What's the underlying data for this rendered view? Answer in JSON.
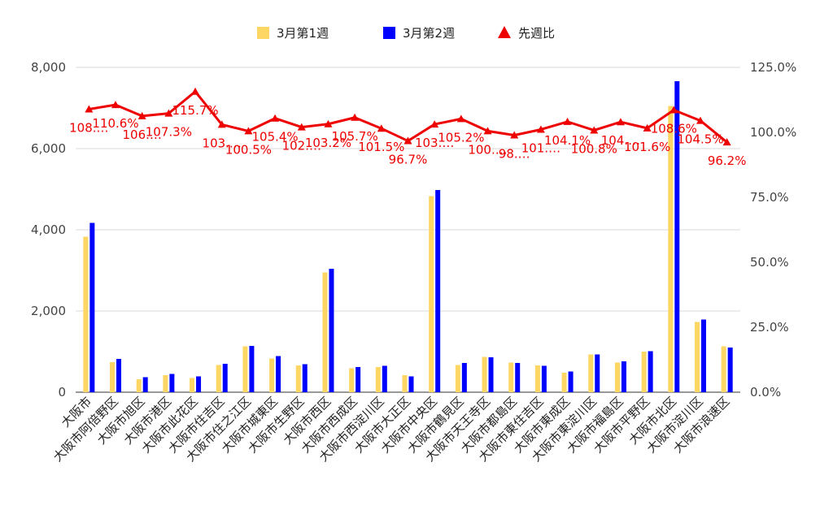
{
  "chart_data": {
    "type": "bar",
    "title": "",
    "categories": [
      "大阪市",
      "大阪市阿倍野区",
      "大阪市旭区",
      "大阪市港区",
      "大阪市此花区",
      "大阪市住吉区",
      "大阪市住之江区",
      "大阪市城東区",
      "大阪市生野区",
      "大阪市西区",
      "大阪市西成区",
      "大阪市西淀川区",
      "大阪市大正区",
      "大阪市中央区",
      "大阪市鶴見区",
      "大阪市天王寺区",
      "大阪市都島区",
      "大阪市東住吉区",
      "大阪市東成区",
      "大阪市東淀川区",
      "大阪市福島区",
      "大阪市平野区",
      "大阪市北区",
      "大阪市淀川区",
      "大阪市浪速区"
    ],
    "series": [
      {
        "name": "3月第1週",
        "type": "bar",
        "axis": "left",
        "color": "#fdd663",
        "values": [
          3830,
          740,
          320,
          420,
          350,
          670,
          1130,
          830,
          660,
          2950,
          590,
          620,
          420,
          4830,
          670,
          870,
          730,
          660,
          480,
          930,
          730,
          1000,
          7050,
          1730,
          1130
        ]
      },
      {
        "name": "3月第2週",
        "type": "bar",
        "axis": "left",
        "color": "#0000ff",
        "values": [
          4170,
          820,
          370,
          450,
          390,
          700,
          1140,
          890,
          690,
          3040,
          620,
          650,
          390,
          4980,
          720,
          860,
          720,
          650,
          510,
          930,
          760,
          1010,
          7660,
          1790,
          1100
        ]
      },
      {
        "name": "先週比",
        "type": "line",
        "axis": "right",
        "color": "#ee0000",
        "marker": "triangle",
        "values": [
          108.9,
          110.6,
          106.3,
          107.3,
          115.7,
          103.0,
          100.5,
          105.4,
          102.0,
          103.2,
          105.7,
          101.5,
          96.7,
          103.1,
          105.2,
          100.5,
          98.9,
          101.1,
          104.1,
          100.8,
          104.0,
          101.6,
          108.6,
          104.5,
          96.2
        ],
        "labels": [
          "108.…",
          "110.6%",
          "106.…",
          "107.3%",
          "115.7%",
          "103.…",
          "100.5%",
          "105.4%",
          "102.…",
          "103.2%",
          "105.7%",
          "101.5%",
          "96.7%",
          "103.…",
          "105.2%",
          "100.…",
          "98.…",
          "101.…",
          "104.1%",
          "100.8%",
          "104.…",
          "101.6%",
          "108.6%",
          "104.5%",
          "96.2%"
        ]
      }
    ],
    "y_left": {
      "min": 0,
      "max": 8000,
      "ticks": [
        0,
        2000,
        4000,
        6000,
        8000
      ],
      "tick_labels": [
        "0",
        "2,000",
        "4,000",
        "6,000",
        "8,000"
      ]
    },
    "y_right": {
      "min": 0,
      "max": 125,
      "ticks": [
        0,
        25,
        50,
        75,
        100,
        125
      ],
      "tick_labels": [
        "0.0%",
        "25.0%",
        "50.0%",
        "75.0%",
        "100.0%",
        "125.0%"
      ]
    },
    "grid": true,
    "legend_position": "top-center"
  }
}
